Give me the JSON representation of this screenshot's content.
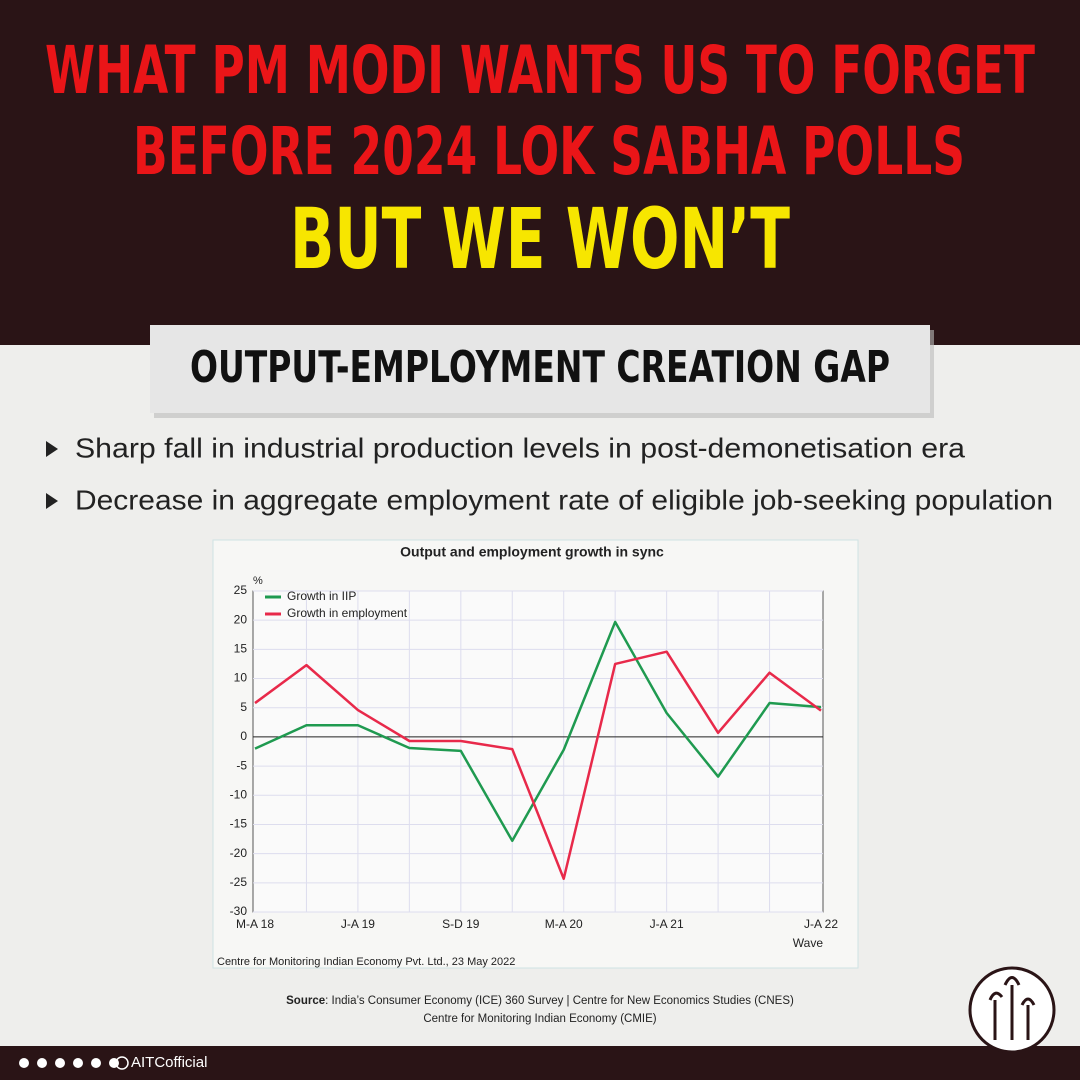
{
  "header": {
    "line1": "WHAT PM MODI WANTS US TO FORGET",
    "line2": "BEFORE 2024 LOK SABHA POLLS",
    "line3": "BUT WE WON’T"
  },
  "section_title": "OUTPUT-EMPLOYMENT CREATION GAP",
  "bullets": [
    "Sharp fall in industrial production levels in post-demonetisation era",
    "Decrease in aggregate employment rate of eligible job-seeking population"
  ],
  "chart_data": {
    "type": "line",
    "title": "Output and employment growth in sync",
    "y_unit": "%",
    "x_label": "Wave",
    "note": "Centre for Monitoring Indian Economy Pvt. Ltd., 23 May 2022",
    "categories": [
      "M-A 18",
      null,
      "J-A 19",
      null,
      "S-D 19",
      null,
      "M-A 20",
      null,
      "J-A 21",
      null,
      null,
      "J-A 22"
    ],
    "series": [
      {
        "name": "Growth in IIP",
        "color": "#1f9a50",
        "values": [
          -2,
          2,
          2,
          -1.9,
          -2.4,
          -17.8,
          -2.2,
          19.7,
          4.1,
          -6.8,
          5.8,
          5.1
        ]
      },
      {
        "name": "Growth in employment",
        "color": "#e8294a",
        "values": [
          5.8,
          12.3,
          4.6,
          -0.7,
          -0.7,
          -2.1,
          -24.3,
          12.5,
          14.6,
          0.7,
          11,
          4.5
        ]
      }
    ],
    "ylim": [
      -30,
      25
    ],
    "yticks": [
      25,
      20,
      15,
      10,
      5,
      0,
      -5,
      -10,
      -15,
      -20,
      -25,
      -30
    ],
    "grid": true,
    "legend": "top-left"
  },
  "source": {
    "label": "Source",
    "line1": ": India’s Consumer Economy (ICE) 360 Survey | Centre for New Economics Studies (CNES)",
    "line2": "Centre for Monitoring Indian Economy (CMIE)"
  },
  "footer": {
    "handle": "AITCofficial"
  }
}
